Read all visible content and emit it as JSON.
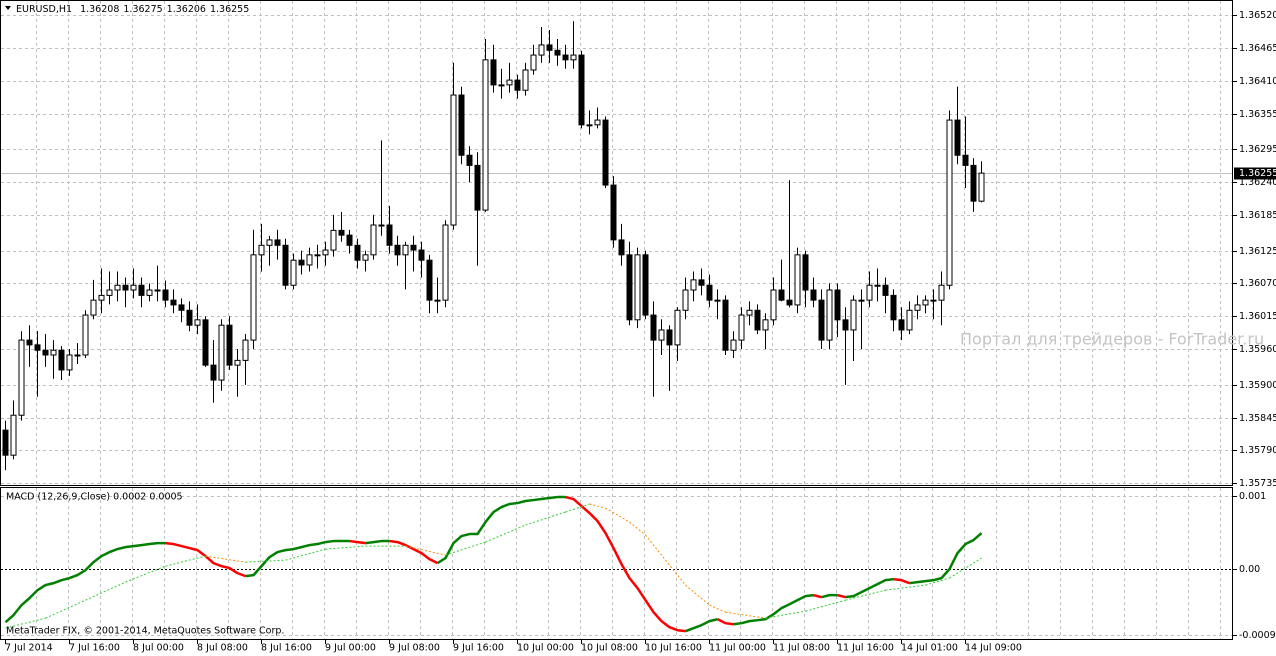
{
  "chart_data": [
    {
      "type": "candlestick",
      "symbol": "EURUSD,H1",
      "watermark": "Портал для трейдеров - ForTrader.ru",
      "up_color": "#ffffff",
      "down_color": "#000000",
      "grid": true,
      "current_price_line": true,
      "ylim": [
        1.35732,
        1.36542
      ],
      "yticks": [
        {
          "value": 1.3652,
          "label": "1.36520"
        },
        1.36465,
        {
          "value": 1.3641,
          "label": "1.36410"
        },
        1.36355,
        1.36295,
        {
          "value": 1.3624,
          "label": "1.36240"
        },
        1.36185,
        1.36125,
        {
          "value": 1.3607,
          "label": "1.36070"
        },
        1.36015,
        {
          "value": 1.3596,
          "label": "1.35960"
        },
        {
          "value": 1.359,
          "label": "1.35900"
        },
        1.35845,
        {
          "value": 1.3579,
          "label": "1.35790"
        },
        1.35735
      ],
      "categories": [
        "7 Jul 2014",
        null,
        null,
        null,
        null,
        null,
        null,
        null,
        "7 Jul 16:00",
        null,
        null,
        null,
        null,
        null,
        null,
        null,
        "8 Jul 00:00",
        null,
        null,
        null,
        null,
        null,
        null,
        null,
        "8 Jul 08:00",
        null,
        null,
        null,
        null,
        null,
        null,
        null,
        "8 Jul 16:00",
        null,
        null,
        null,
        null,
        null,
        null,
        null,
        "9 Jul 00:00",
        null,
        null,
        null,
        null,
        null,
        null,
        null,
        "9 Jul 08:00",
        null,
        null,
        null,
        null,
        null,
        null,
        null,
        "9 Jul 16:00",
        null,
        null,
        null,
        null,
        null,
        null,
        null,
        "10 Jul 00:00",
        null,
        null,
        null,
        null,
        null,
        null,
        null,
        "10 Jul 08:00",
        null,
        null,
        null,
        null,
        null,
        null,
        null,
        "10 Jul 16:00",
        null,
        null,
        null,
        null,
        null,
        null,
        null,
        "11 Jul 00:00",
        null,
        null,
        null,
        null,
        null,
        null,
        null,
        "11 Jul 08:00",
        null,
        null,
        null,
        null,
        null,
        null,
        null,
        "11 Jul 16:00",
        null,
        null,
        null,
        null,
        null,
        null,
        null,
        "14 Jul 01:00",
        null,
        null,
        null,
        null,
        null,
        null,
        null,
        "14 Jul 09:00",
        null,
        null
      ],
      "ohlc": [
        [
          1.35824,
          1.3584,
          1.35757,
          1.35782
        ],
        [
          1.35782,
          1.35874,
          1.35775,
          1.35849
        ],
        [
          1.35849,
          1.3599,
          1.3584,
          1.35975
        ],
        [
          1.35975,
          1.36,
          1.3593,
          1.35967
        ],
        [
          1.35967,
          1.3599,
          1.3588,
          1.35958
        ],
        [
          1.35958,
          1.35985,
          1.3593,
          1.3595
        ],
        [
          1.3595,
          1.35975,
          1.3591,
          1.35958
        ],
        [
          1.35958,
          1.35965,
          1.35908,
          1.35925
        ],
        [
          1.35925,
          1.3596,
          1.35915,
          1.3595
        ],
        [
          1.3595,
          1.3597,
          1.35935,
          1.3595
        ],
        [
          1.3595,
          1.36025,
          1.35945,
          1.36017
        ],
        [
          1.36017,
          1.36076,
          1.3601,
          1.36042
        ],
        [
          1.36042,
          1.36095,
          1.3602,
          1.3605
        ],
        [
          1.3605,
          1.3609,
          1.36035,
          1.36059
        ],
        [
          1.36059,
          1.3609,
          1.3604,
          1.36067
        ],
        [
          1.36067,
          1.3608,
          1.3603,
          1.36059
        ],
        [
          1.36059,
          1.36095,
          1.36045,
          1.36067
        ],
        [
          1.36067,
          1.3608,
          1.3603,
          1.3605
        ],
        [
          1.3605,
          1.3607,
          1.3604,
          1.36059
        ],
        [
          1.36059,
          1.361,
          1.3604,
          1.36059
        ],
        [
          1.36059,
          1.36075,
          1.3603,
          1.36042
        ],
        [
          1.36042,
          1.3606,
          1.3602,
          1.36034
        ],
        [
          1.36034,
          1.36045,
          1.36005,
          1.36025
        ],
        [
          1.36025,
          1.3604,
          1.3599,
          1.36
        ],
        [
          1.36,
          1.36035,
          1.35985,
          1.36009
        ],
        [
          1.36009,
          1.36015,
          1.3593,
          1.35933
        ],
        [
          1.35933,
          1.35975,
          1.3587,
          1.35908
        ],
        [
          1.35908,
          1.3601,
          1.3589,
          1.36
        ],
        [
          1.36,
          1.36015,
          1.35925,
          1.35933
        ],
        [
          1.35933,
          1.3596,
          1.3588,
          1.35941
        ],
        [
          1.35941,
          1.35985,
          1.359,
          1.35975
        ],
        [
          1.35975,
          1.3616,
          1.3596,
          1.36118
        ],
        [
          1.36118,
          1.3617,
          1.3609,
          1.36134
        ],
        [
          1.36134,
          1.3615,
          1.361,
          1.36143
        ],
        [
          1.36143,
          1.3616,
          1.3611,
          1.36134
        ],
        [
          1.36134,
          1.36145,
          1.3606,
          1.36067
        ],
        [
          1.36067,
          1.3612,
          1.3606,
          1.36109
        ],
        [
          1.36109,
          1.36125,
          1.36085,
          1.36101
        ],
        [
          1.36101,
          1.3613,
          1.3609,
          1.36118
        ],
        [
          1.36118,
          1.36135,
          1.36095,
          1.36118
        ],
        [
          1.36118,
          1.3614,
          1.361,
          1.36126
        ],
        [
          1.36126,
          1.36185,
          1.36115,
          1.36159
        ],
        [
          1.36159,
          1.3619,
          1.3614,
          1.36151
        ],
        [
          1.36151,
          1.3616,
          1.3612,
          1.36134
        ],
        [
          1.36134,
          1.36145,
          1.36095,
          1.36109
        ],
        [
          1.36109,
          1.36125,
          1.3609,
          1.36118
        ],
        [
          1.36118,
          1.36185,
          1.3611,
          1.36168
        ],
        [
          1.36168,
          1.3631,
          1.3615,
          1.36168
        ],
        [
          1.36168,
          1.362,
          1.3612,
          1.36134
        ],
        [
          1.36134,
          1.3615,
          1.361,
          1.36118
        ],
        [
          1.36118,
          1.3614,
          1.3606,
          1.36134
        ],
        [
          1.36134,
          1.3615,
          1.3609,
          1.36126
        ],
        [
          1.36126,
          1.3614,
          1.3608,
          1.36109
        ],
        [
          1.36109,
          1.36118,
          1.3602,
          1.36042
        ],
        [
          1.36042,
          1.3608,
          1.3602,
          1.36042
        ],
        [
          1.36042,
          1.36176,
          1.3603,
          1.36168
        ],
        [
          1.36168,
          1.3644,
          1.3616,
          1.36386
        ],
        [
          1.36386,
          1.364,
          1.3627,
          1.36285
        ],
        [
          1.36285,
          1.363,
          1.3624,
          1.36268
        ],
        [
          1.36268,
          1.3629,
          1.361,
          1.36193
        ],
        [
          1.36193,
          1.3648,
          1.3619,
          1.36445
        ],
        [
          1.36445,
          1.3647,
          1.3639,
          1.36403
        ],
        [
          1.36403,
          1.3643,
          1.3638,
          1.36403
        ],
        [
          1.36403,
          1.3644,
          1.3639,
          1.36411
        ],
        [
          1.36411,
          1.3642,
          1.3638,
          1.36394
        ],
        [
          1.36394,
          1.3644,
          1.36385,
          1.36428
        ],
        [
          1.36428,
          1.3647,
          1.3642,
          1.36453
        ],
        [
          1.36453,
          1.365,
          1.3644,
          1.3647
        ],
        [
          1.3647,
          1.36495,
          1.3644,
          1.36461
        ],
        [
          1.36461,
          1.3648,
          1.36435,
          1.36453
        ],
        [
          1.36453,
          1.3647,
          1.3643,
          1.36445
        ],
        [
          1.36445,
          1.3651,
          1.3643,
          1.36453
        ],
        [
          1.36453,
          1.3646,
          1.3633,
          1.36336
        ],
        [
          1.36336,
          1.3636,
          1.3632,
          1.36336
        ],
        [
          1.36336,
          1.36365,
          1.3633,
          1.36344
        ],
        [
          1.36344,
          1.3635,
          1.3623,
          1.36235
        ],
        [
          1.36235,
          1.3625,
          1.3613,
          1.36143
        ],
        [
          1.36143,
          1.3617,
          1.361,
          1.36118
        ],
        [
          1.36118,
          1.3614,
          1.36,
          1.36009
        ],
        [
          1.36009,
          1.3613,
          1.35995,
          1.36118
        ],
        [
          1.36118,
          1.36125,
          1.3601,
          1.36017
        ],
        [
          1.36017,
          1.3604,
          1.3588,
          1.35975
        ],
        [
          1.35975,
          1.3601,
          1.3595,
          1.35992
        ],
        [
          1.35992,
          1.36,
          1.3589,
          1.35967
        ],
        [
          1.35967,
          1.3603,
          1.3594,
          1.36025
        ],
        [
          1.36025,
          1.3608,
          1.3601,
          1.36059
        ],
        [
          1.36059,
          1.3609,
          1.3604,
          1.36076
        ],
        [
          1.36076,
          1.36095,
          1.3605,
          1.36067
        ],
        [
          1.36067,
          1.36085,
          1.3603,
          1.36042
        ],
        [
          1.36042,
          1.3606,
          1.3601,
          1.36042
        ],
        [
          1.36042,
          1.3605,
          1.3595,
          1.35958
        ],
        [
          1.35958,
          1.3599,
          1.35945,
          1.35975
        ],
        [
          1.35975,
          1.3603,
          1.3596,
          1.36017
        ],
        [
          1.36017,
          1.3604,
          1.36,
          1.36025
        ],
        [
          1.36025,
          1.36035,
          1.35985,
          1.35992
        ],
        [
          1.35992,
          1.3602,
          1.3596,
          1.36009
        ],
        [
          1.36009,
          1.3608,
          1.36,
          1.36059
        ],
        [
          1.36059,
          1.3611,
          1.3604,
          1.36042
        ],
        [
          1.36042,
          1.36243,
          1.3603,
          1.36034
        ],
        [
          1.36034,
          1.3613,
          1.3602,
          1.36118
        ],
        [
          1.36118,
          1.36125,
          1.3603,
          1.36059
        ],
        [
          1.36059,
          1.3608,
          1.3603,
          1.36042
        ],
        [
          1.36042,
          1.3606,
          1.3596,
          1.35975
        ],
        [
          1.35975,
          1.3607,
          1.3596,
          1.36059
        ],
        [
          1.36059,
          1.3607,
          1.3598,
          1.36009
        ],
        [
          1.36009,
          1.3603,
          1.359,
          1.35992
        ],
        [
          1.35992,
          1.3605,
          1.3594,
          1.36042
        ],
        [
          1.36042,
          1.3606,
          1.3596,
          1.36042
        ],
        [
          1.36042,
          1.3609,
          1.3603,
          1.36067
        ],
        [
          1.36067,
          1.36095,
          1.3604,
          1.36067
        ],
        [
          1.36067,
          1.3608,
          1.3602,
          1.3605
        ],
        [
          1.3605,
          1.3606,
          1.3599,
          1.36009
        ],
        [
          1.36009,
          1.3603,
          1.35975,
          1.35992
        ],
        [
          1.35992,
          1.3604,
          1.35985,
          1.36025
        ],
        [
          1.36025,
          1.3605,
          1.3601,
          1.36034
        ],
        [
          1.36034,
          1.3605,
          1.3602,
          1.36042
        ],
        [
          1.36042,
          1.3606,
          1.3601,
          1.36042
        ],
        [
          1.36042,
          1.3609,
          1.36,
          1.36067
        ],
        [
          1.36067,
          1.3636,
          1.3606,
          1.36344
        ],
        [
          1.36344,
          1.364,
          1.3627,
          1.36285
        ],
        [
          1.36285,
          1.3635,
          1.3623,
          1.36268
        ],
        [
          1.36268,
          1.3628,
          1.3619,
          1.36208
        ],
        [
          1.36208,
          1.36275,
          1.36206,
          1.36255
        ]
      ]
    },
    {
      "type": "macd",
      "title": "MACD (12,26,9,Close) 0.0002 0.0005",
      "copyright": "MetaTrader FIX, © 2001-2014, MetaQuotes Software Corp.",
      "ylim": [
        -0.00097,
        0.00111
      ],
      "yticks": [
        0.001,
        {
          "value": 0,
          "label": "0.00"
        },
        -0.0009
      ],
      "series": [
        {
          "up_color": "#008000",
          "down_color": "#ff0000",
          "values": [
            -0.000726,
            -0.00063,
            -0.000493,
            -0.000397,
            -0.000288,
            -0.000219,
            -0.000192,
            -0.000151,
            -0.000123,
            -8.2e-05,
            -1.4e-05,
            9.6e-05,
            0.000178,
            0.000233,
            0.000274,
            0.000301,
            0.000315,
            0.000329,
            0.000343,
            0.000356,
            0.000356,
            0.000343,
            0.000315,
            0.000288,
            0.00026,
            0.000178,
            8.2e-05,
            4.1e-05,
            1.4e-05,
            -5.5e-05,
            -9.6e-05,
            -8.2e-05,
            4.1e-05,
            0.000164,
            0.000233,
            0.00026,
            0.000274,
            0.000301,
            0.000329,
            0.000343,
            0.00037,
            0.000384,
            0.000384,
            0.000384,
            0.00037,
            0.000356,
            0.00037,
            0.000384,
            0.000384,
            0.00037,
            0.000329,
            0.000274,
            0.000219,
            0.000137,
            8.2e-05,
            0.000151,
            0.000356,
            0.000452,
            0.00048,
            0.00048,
            0.000644,
            0.000781,
            0.000849,
            0.000891,
            0.000904,
            0.000932,
            0.000945,
            0.000959,
            0.000973,
            0.000986,
            0.000986,
            0.000959,
            0.000863,
            0.000767,
            0.000658,
            0.000493,
            0.000288,
            6.9e-05,
            -0.000123,
            -0.00026,
            -0.000425,
            -0.000589,
            -0.000712,
            -0.000795,
            -0.000836,
            -0.000849,
            -0.000808,
            -0.000767,
            -0.000712,
            -0.000685,
            -0.00074,
            -0.000754,
            -0.00074,
            -0.000712,
            -0.000699,
            -0.000685,
            -0.000617,
            -0.000534,
            -0.00048,
            -0.000425,
            -0.00037,
            -0.000356,
            -0.000384,
            -0.000356,
            -0.000356,
            -0.000384,
            -0.00037,
            -0.000315,
            -0.00026,
            -0.000206,
            -0.000151,
            -0.000137,
            -0.000151,
            -0.000192,
            -0.000178,
            -0.000164,
            -0.000151,
            -0.000123,
            0,
            0.000219,
            0.000343,
            0.000397,
            0.000493
          ]
        },
        {
          "color": "#32cd32",
          "above_color": "#ff8c00",
          "dashed": true,
          "x": [
            0,
            5,
            10,
            15,
            20,
            25,
            30,
            35,
            40,
            45,
            50,
            55,
            60,
            65,
            70,
            73,
            75,
            78,
            80,
            85,
            88,
            90,
            95,
            100,
            105,
            110,
            115,
            118,
            122
          ],
          "values": [
            -0.000808,
            -0.000671,
            -0.000425,
            -0.000178,
            4.1e-05,
            0.000178,
            9.6e-05,
            0.000123,
            0.000274,
            0.000315,
            0.000315,
            0.000192,
            0.00037,
            0.000603,
            0.000781,
            0.000891,
            0.000836,
            0.000644,
            0.000466,
            -0.000219,
            -0.000493,
            -0.000589,
            -0.000671,
            -0.000575,
            -0.000425,
            -0.000288,
            -0.000219,
            -0.000123,
            0.000151
          ]
        }
      ]
    }
  ]
}
